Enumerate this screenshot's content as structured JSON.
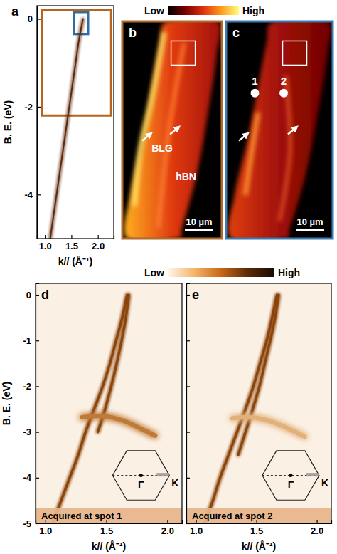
{
  "colorbars": [
    {
      "low": "Low",
      "high": "High",
      "colors": [
        "#000000",
        "#7a0000",
        "#e03010",
        "#ff9a1a",
        "#ffff80"
      ]
    },
    {
      "low": "Low",
      "high": "High",
      "colors": [
        "#fff6ea",
        "#f4b46a",
        "#c8661a",
        "#5a2a06",
        "#1a0a00"
      ]
    }
  ],
  "images": [
    {
      "panel": "b",
      "labels": [
        "BLG",
        "hBN"
      ],
      "scale_bar": "10 µm"
    },
    {
      "panel": "c",
      "spots": [
        "1",
        "2"
      ],
      "scale_bar": "10 µm"
    }
  ],
  "chart_data": [
    {
      "panel": "a",
      "type": "line",
      "xlabel": "k// (Å⁻¹)",
      "ylabel": "B. E. (eV)",
      "xlim": [
        0.85,
        2.3
      ],
      "ylim": [
        -5.0,
        0.3
      ],
      "xticks": [
        {
          "value": 1.0,
          "label": "1.0"
        },
        {
          "value": 1.5,
          "label": "1.5"
        },
        {
          "value": 2.0,
          "label": "2.0"
        }
      ],
      "yticks": [
        0,
        -2,
        -4
      ],
      "series": [
        {
          "color": "#5c2a0c",
          "x": [
            1.72,
            1.64,
            1.58,
            1.52,
            1.46,
            1.4,
            1.34,
            1.28,
            1.22,
            1.16,
            1.1
          ],
          "values": [
            0.0,
            -0.5,
            -1.0,
            -1.5,
            -2.0,
            -2.5,
            -3.0,
            -3.5,
            -4.0,
            -4.5,
            -5.0
          ]
        }
      ],
      "boxes": [
        {
          "color": "#b5651d",
          "x": [
            0.95,
            2.25
          ],
          "y": [
            -2.2,
            0.2
          ]
        },
        {
          "color": "#2e6da4",
          "x": [
            1.55,
            1.82
          ],
          "y": [
            -0.35,
            0.15
          ]
        }
      ]
    },
    {
      "panel": "d",
      "type": "line",
      "xlabel": "k// (Å⁻¹)",
      "ylabel": "B. E. (eV)",
      "xlim": [
        0.92,
        2.12
      ],
      "ylim": [
        -5.0,
        0.25
      ],
      "xticks": [
        {
          "value": 1.0,
          "label": "1.0"
        },
        {
          "value": 1.5,
          "label": "1.5"
        },
        {
          "value": 2.0,
          "label": "2.0"
        }
      ],
      "yticks": [
        0,
        -1,
        -2,
        -3,
        -4,
        -5
      ],
      "series": [
        {
          "color": "#8a4510",
          "x": [
            1.67,
            1.63,
            1.58,
            1.53,
            1.47,
            1.4,
            1.33,
            1.27,
            1.2,
            1.13,
            1.06
          ],
          "values": [
            0.0,
            -0.5,
            -1.0,
            -1.5,
            -2.0,
            -2.5,
            -3.0,
            -3.5,
            -4.0,
            -4.5,
            -5.0
          ]
        },
        {
          "color": "#8a4510",
          "x": [
            1.685,
            1.66,
            1.625,
            1.585,
            1.54,
            1.49,
            1.43
          ],
          "values": [
            0.0,
            -0.5,
            -1.0,
            -1.5,
            -2.0,
            -2.5,
            -3.0
          ]
        },
        {
          "color": "#c07a38",
          "x": [
            1.3,
            1.4,
            1.5,
            1.6,
            1.7,
            1.8,
            1.9
          ],
          "values": [
            -2.68,
            -2.65,
            -2.66,
            -2.72,
            -2.82,
            -2.95,
            -3.08
          ]
        }
      ],
      "inset": {
        "labels": [
          "Γ",
          "K"
        ]
      },
      "caption": "Acquired at spot 1"
    },
    {
      "panel": "e",
      "type": "line",
      "xlabel": "k// (Å⁻¹)",
      "tick_labels": "x",
      "xlim": [
        0.92,
        2.12
      ],
      "ylim": [
        -5.0,
        0.25
      ],
      "xticks": [
        {
          "value": 1.0,
          "label": "1.0"
        },
        {
          "value": 1.5,
          "label": "1.5"
        },
        {
          "value": 2.0,
          "label": "2.0"
        }
      ],
      "yticks": [
        0,
        -1,
        -2,
        -3,
        -4,
        -5
      ],
      "series": [
        {
          "color": "#8a4510",
          "x": [
            1.67,
            1.63,
            1.585,
            1.53,
            1.475,
            1.41,
            1.34,
            1.27,
            1.2,
            1.14,
            1.07
          ],
          "values": [
            0.0,
            -0.5,
            -1.0,
            -1.5,
            -2.0,
            -2.5,
            -3.0,
            -3.5,
            -4.0,
            -4.5,
            -5.0
          ]
        },
        {
          "color": "#8a4510",
          "x": [
            1.685,
            1.655,
            1.615,
            1.57,
            1.525,
            1.47,
            1.41,
            1.35
          ],
          "values": [
            0.0,
            -0.5,
            -1.0,
            -1.5,
            -2.0,
            -2.5,
            -3.0,
            -3.5
          ]
        },
        {
          "color": "#e2b07a",
          "x": [
            1.3,
            1.4,
            1.5,
            1.6,
            1.7,
            1.8,
            1.9
          ],
          "values": [
            -2.7,
            -2.68,
            -2.69,
            -2.75,
            -2.85,
            -2.97,
            -3.1
          ]
        }
      ],
      "inset": {
        "labels": [
          "Γ",
          "K"
        ]
      },
      "caption": "Acquired at spot 2"
    }
  ]
}
